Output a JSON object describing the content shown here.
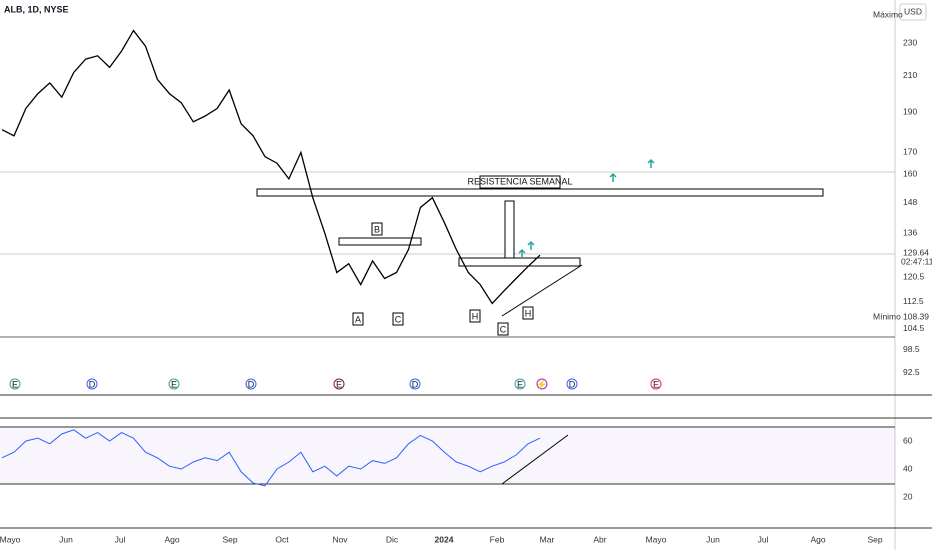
{
  "header": {
    "symbol": "ALB, 1D, NYSE",
    "currency": "USD"
  },
  "price_axis": {
    "ticks": [
      230,
      210,
      190,
      170,
      160,
      148,
      136,
      120.5,
      112.5,
      104.5,
      98.5,
      92.5
    ],
    "max_label": "Máximo",
    "min_label": "Mínimo",
    "min_value": "108.39",
    "last_value": "129.64",
    "countdown": "02:47:11"
  },
  "rsi_axis": {
    "ticks": [
      60,
      40,
      20
    ]
  },
  "time_axis": [
    "Mayo",
    "Jun",
    "Jul",
    "Ago",
    "Sep",
    "Oct",
    "Nov",
    "Dic",
    "2024",
    "Feb",
    "Mar",
    "Abr",
    "Mayo",
    "Jun",
    "Jul",
    "Ago",
    "Sep"
  ],
  "annotations": {
    "resistance": "RESISTENCIA SEMANAL",
    "points": [
      "A",
      "B",
      "C",
      "H",
      "C",
      "H"
    ]
  },
  "events": [
    "E",
    "D",
    "E",
    "D",
    "E",
    "D",
    "E",
    "⚡",
    "D",
    "E"
  ],
  "price": [
    181,
    178,
    192,
    200,
    206,
    198,
    212,
    220,
    222,
    215,
    225,
    238,
    228,
    208,
    200,
    195,
    185,
    188,
    192,
    202,
    184,
    178,
    168,
    165,
    158,
    170,
    150,
    136,
    122,
    125,
    118,
    126,
    120,
    122,
    130,
    146,
    150,
    140,
    130,
    122,
    118,
    112,
    116,
    120,
    124,
    128
  ],
  "rsi": [
    48,
    52,
    60,
    62,
    58,
    65,
    68,
    62,
    66,
    60,
    66,
    62,
    52,
    48,
    42,
    40,
    45,
    48,
    46,
    52,
    38,
    30,
    28,
    40,
    45,
    52,
    38,
    42,
    35,
    42,
    40,
    46,
    44,
    48,
    58,
    64,
    60,
    52,
    45,
    42,
    38,
    42,
    45,
    50,
    58,
    62
  ]
}
